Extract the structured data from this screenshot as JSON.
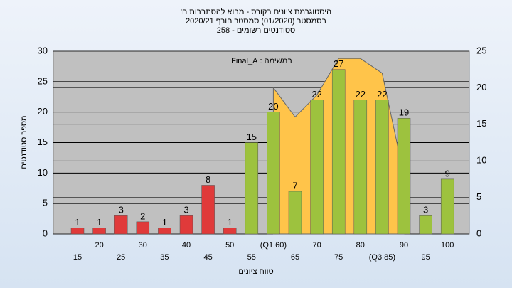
{
  "chart_data": {
    "type": "bar",
    "title": [
      "היסטוגרמת ציונים בקורס - מבוא להסתברות ח'",
      "בסמסטר (01/2020) סמסטר חורף 2020/21",
      "סטודנטים רשומים - 258"
    ],
    "annotation": "במשימה : Final_A",
    "x_label": "טווח ציונים",
    "y_label": "מספר סטודנטים",
    "categories": [
      "15",
      "20",
      "25",
      "30",
      "35",
      "40",
      "45",
      "50",
      "55",
      "(Q1 60)",
      "65",
      "70",
      "75",
      "80",
      "(Q3 85)",
      "90",
      "95",
      "100"
    ],
    "values": [
      1,
      1,
      3,
      2,
      1,
      3,
      8,
      1,
      15,
      20,
      7,
      22,
      27,
      22,
      22,
      19,
      3,
      9
    ],
    "colors": [
      "#e03a3a",
      "#e03a3a",
      "#e03a3a",
      "#e03a3a",
      "#e03a3a",
      "#e03a3a",
      "#e03a3a",
      "#e03a3a",
      "#9dc23e",
      "#9dc23e",
      "#9dc23e",
      "#9dc23e",
      "#9dc23e",
      "#9dc23e",
      "#9dc23e",
      "#9dc23e",
      "#9dc23e",
      "#9dc23e"
    ],
    "area": {
      "axis": "y2",
      "color": "#ffc44a",
      "values": [
        null,
        null,
        null,
        null,
        null,
        null,
        null,
        null,
        null,
        20,
        16,
        19,
        24,
        24,
        22,
        8,
        null,
        null
      ]
    },
    "ylim": [
      0,
      30
    ],
    "yticks": [
      0,
      5,
      10,
      15,
      20,
      25,
      30
    ],
    "y2lim": [
      0,
      25
    ],
    "y2ticks": [
      0,
      5,
      10,
      15,
      20,
      25
    ],
    "grid": true
  }
}
